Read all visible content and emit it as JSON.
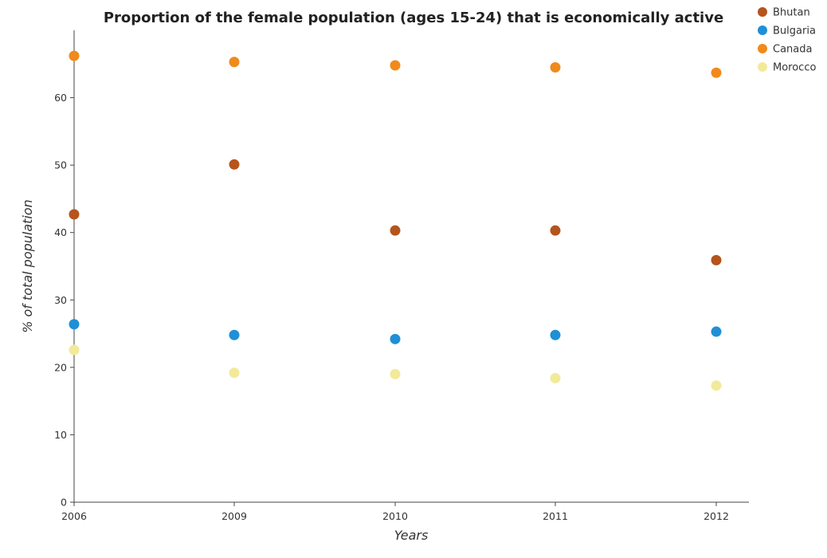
{
  "chart_data": {
    "type": "scatter",
    "title": "Proportion of the female population (ages 15-24) that is economically active",
    "xlabel": "Years",
    "ylabel": "% of total population",
    "categories": [
      "2006",
      "2009",
      "2010",
      "2011",
      "2012"
    ],
    "ylim": [
      0,
      70
    ],
    "yticks": [
      "0",
      "10",
      "20",
      "30",
      "40",
      "50",
      "60"
    ],
    "grid": false,
    "legend_position": "top-right",
    "series": [
      {
        "name": "Bhutan",
        "color": "#b5541b",
        "values": [
          42.7,
          50.1,
          40.3,
          40.3,
          35.9
        ]
      },
      {
        "name": "Bulgaria",
        "color": "#1f8fd6",
        "values": [
          26.4,
          24.8,
          24.2,
          24.8,
          25.3
        ]
      },
      {
        "name": "Canada",
        "color": "#f08a1c",
        "values": [
          66.2,
          65.3,
          64.8,
          64.5,
          63.7
        ]
      },
      {
        "name": "Morocco",
        "color": "#f2ea9a",
        "values": [
          22.6,
          19.2,
          19.0,
          18.4,
          17.3
        ]
      }
    ]
  }
}
